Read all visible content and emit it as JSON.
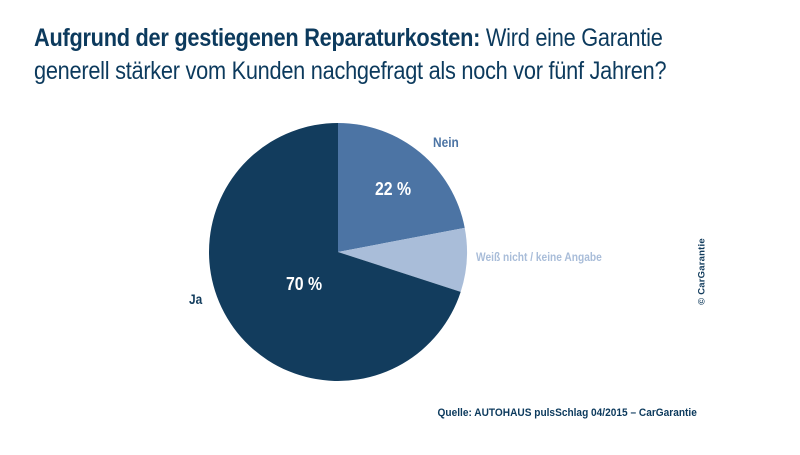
{
  "title": {
    "line1_bold": "Aufgrund der gestiegenen Reparaturkosten:",
    "line1_regular": " Wird eine Garantie",
    "line2": "generell stärker vom Kunden nachgefragt als noch vor fünf Jahren?"
  },
  "chart_data": {
    "type": "pie",
    "title": "Aufgrund der gestiegenen Reparaturkosten: Wird eine Garantie generell stärker vom Kunden nachgefragt als noch vor fünf Jahren?",
    "unit": "%",
    "start_angle_deg": 0,
    "direction": "clockwise",
    "legend_position": "labels-around-pie",
    "slices": [
      {
        "label": "Nein",
        "value": 22,
        "display": "22 %",
        "color": "#4C74A4"
      },
      {
        "label": "Weiß nicht / keine Angabe",
        "value": 8,
        "display": "",
        "color": "#A9BDD9"
      },
      {
        "label": "Ja",
        "value": 70,
        "display": "70 %",
        "color": "#123C5D"
      }
    ]
  },
  "watermark": "© CarGarantie",
  "source": "Quelle: AUTOHAUS pulsSchlag 04/2015 – CarGarantie",
  "colors": {
    "title_text": "#0C3A5D",
    "background": "#FFFFFF",
    "pct_label_text": "#FFFFFF"
  }
}
